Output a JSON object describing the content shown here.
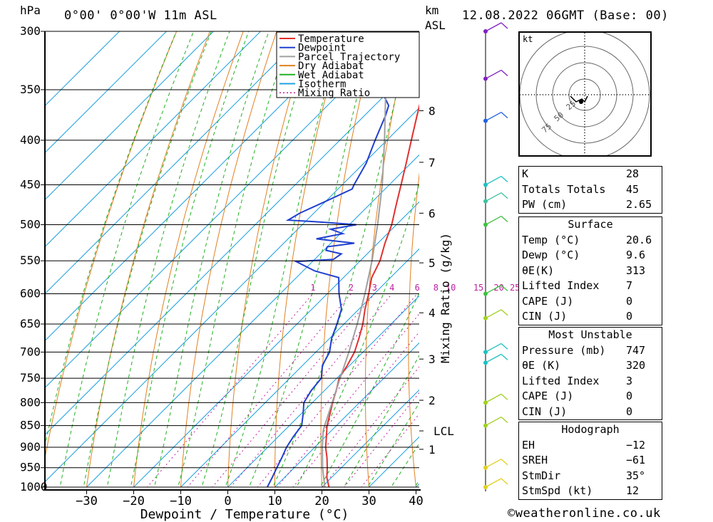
{
  "header": {
    "location": "0°00' 0°00'W 11m ASL",
    "datetime": "12.08.2022 06GMT (Base: 00)",
    "pressure_unit": "hPa",
    "height_unit_line1": "km",
    "height_unit_line2": "ASL"
  },
  "footer": {
    "copyright": "©weatheronline.co.uk"
  },
  "legend": [
    {
      "label": "Temperature",
      "color": "#e03030"
    },
    {
      "label": "Dewpoint",
      "color": "#2040d0"
    },
    {
      "label": "Parcel Trajectory",
      "color": "#a0a0a0"
    },
    {
      "label": "Dry Adiabat",
      "color": "#e08020"
    },
    {
      "label": "Wet Adiabat",
      "color": "#20b020"
    },
    {
      "label": "Isotherm",
      "color": "#20a0e0"
    },
    {
      "label": "Mixing Ratio",
      "color": "#c020a0"
    }
  ],
  "chart_data": {
    "type": "line",
    "xlabel": "Dewpoint / Temperature (°C)",
    "ylabel": "",
    "mixing_ratio_axis_label": "Mixing Ratio (g/kg)",
    "pressure_ticks": [
      300,
      350,
      400,
      450,
      500,
      550,
      600,
      650,
      700,
      750,
      800,
      850,
      900,
      950,
      1000
    ],
    "temperature_ticks": [
      "−30",
      "−20",
      "−10",
      "0",
      "10",
      "20",
      "30",
      "40"
    ],
    "temperature_tick_values": [
      -30,
      -20,
      -10,
      0,
      10,
      20,
      30,
      40
    ],
    "xlim": [
      -40,
      40
    ],
    "height_ticks": [
      {
        "label": "1",
        "p": 905
      },
      {
        "label": "LCL",
        "p": 862
      },
      {
        "label": "2",
        "p": 795
      },
      {
        "label": "3",
        "p": 713
      },
      {
        "label": "4",
        "p": 631
      },
      {
        "label": "5",
        "p": 553
      },
      {
        "label": "6",
        "p": 485
      },
      {
        "label": "7",
        "p": 424
      },
      {
        "label": "8",
        "p": 370
      }
    ],
    "mixing_ratio_labels": [
      "1",
      "2",
      "3",
      "4",
      "6",
      "8",
      "10",
      "15",
      "20",
      "25"
    ],
    "mixing_ratio_values": [
      1,
      2,
      3,
      4,
      6,
      8,
      10,
      15,
      20,
      25
    ],
    "series": [
      {
        "key": "temperature",
        "points": [
          [
            1008,
            20.6
          ],
          [
            1000,
            21.5
          ],
          [
            975,
            19
          ],
          [
            950,
            17
          ],
          [
            925,
            14.8
          ],
          [
            900,
            12.3
          ],
          [
            875,
            10.2
          ],
          [
            850,
            8
          ],
          [
            825,
            6.2
          ],
          [
            800,
            4.3
          ],
          [
            775,
            2.5
          ],
          [
            750,
            0.5
          ],
          [
            725,
            -0.5
          ],
          [
            700,
            -1.8
          ],
          [
            675,
            -3.8
          ],
          [
            650,
            -6
          ],
          [
            625,
            -8.7
          ],
          [
            600,
            -11.2
          ],
          [
            575,
            -14
          ],
          [
            550,
            -15.8
          ],
          [
            525,
            -18.5
          ],
          [
            500,
            -21
          ],
          [
            475,
            -24.2
          ],
          [
            450,
            -27.5
          ],
          [
            425,
            -31
          ],
          [
            400,
            -34.8
          ],
          [
            375,
            -38.8
          ],
          [
            350,
            -43
          ],
          [
            325,
            -47.5
          ],
          [
            300,
            -52.5
          ]
        ]
      },
      {
        "key": "dewpoint",
        "points": [
          [
            1008,
            9.6
          ],
          [
            1000,
            8.4
          ],
          [
            975,
            7.4
          ],
          [
            950,
            6.3
          ],
          [
            925,
            5.2
          ],
          [
            900,
            4
          ],
          [
            875,
            3.2
          ],
          [
            850,
            2.6
          ],
          [
            825,
            0.5
          ],
          [
            800,
            -1.8
          ],
          [
            775,
            -2.8
          ],
          [
            750,
            -3.3
          ],
          [
            725,
            -5.8
          ],
          [
            700,
            -7.1
          ],
          [
            675,
            -9.6
          ],
          [
            650,
            -11.5
          ],
          [
            625,
            -13.7
          ],
          [
            600,
            -17.5
          ],
          [
            575,
            -21
          ],
          [
            565,
            -27.5
          ],
          [
            551,
            -33.5
          ],
          [
            548,
            -26
          ],
          [
            540,
            -25.5
          ],
          [
            535,
            -29.5
          ],
          [
            530,
            -30
          ],
          [
            525,
            -25
          ],
          [
            519,
            -34
          ],
          [
            512,
            -29.5
          ],
          [
            506,
            -33
          ],
          [
            500,
            -28.5
          ],
          [
            496,
            -38
          ],
          [
            494,
            -44
          ],
          [
            485,
            -43
          ],
          [
            470,
            -40
          ],
          [
            455,
            -37
          ],
          [
            450,
            -37.5
          ],
          [
            425,
            -39.5
          ],
          [
            400,
            -42.5
          ],
          [
            375,
            -45.5
          ],
          [
            365,
            -47
          ],
          [
            350,
            -52
          ],
          [
            325,
            -59
          ],
          [
            300,
            -63
          ]
        ]
      },
      {
        "key": "parcel",
        "points": [
          [
            1000,
            20.6
          ],
          [
            950,
            16
          ],
          [
            900,
            11.6
          ],
          [
            862,
            8.3
          ],
          [
            850,
            7.5
          ],
          [
            800,
            4.2
          ],
          [
            750,
            0.7
          ],
          [
            700,
            -3
          ],
          [
            650,
            -7.2
          ],
          [
            600,
            -12
          ],
          [
            550,
            -17.5
          ],
          [
            500,
            -24
          ],
          [
            450,
            -31.5
          ],
          [
            400,
            -40.5
          ],
          [
            350,
            -51
          ],
          [
            300,
            -61
          ]
        ]
      }
    ]
  },
  "wind_barbs": [
    {
      "p": 1000,
      "color": "#e0d020"
    },
    {
      "p": 950,
      "color": "#e0d020"
    },
    {
      "p": 850,
      "color": "#a0d020"
    },
    {
      "p": 800,
      "color": "#a0d020"
    },
    {
      "p": 720,
      "color": "#20c0c0"
    },
    {
      "p": 700,
      "color": "#20c0c0"
    },
    {
      "p": 640,
      "color": "#a0d020"
    },
    {
      "p": 600,
      "color": "#40c040"
    },
    {
      "p": 500,
      "color": "#40c040"
    },
    {
      "p": 470,
      "color": "#40c0a0"
    },
    {
      "p": 450,
      "color": "#20c0c0"
    },
    {
      "p": 380,
      "color": "#2060e0"
    },
    {
      "p": 340,
      "color": "#8020c0"
    },
    {
      "p": 300,
      "color": "#8020c0"
    }
  ],
  "hodograph": {
    "unit_label": "kt",
    "ring_labels": [
      "25",
      "50",
      "75"
    ]
  },
  "indices": [
    {
      "label": "K",
      "value": "28"
    },
    {
      "label": "Totals Totals",
      "value": "45"
    },
    {
      "label": "PW (cm)",
      "value": "2.65"
    }
  ],
  "surface": {
    "title": "Surface",
    "rows": [
      {
        "label": "Temp (°C)",
        "value": "20.6"
      },
      {
        "label": "Dewp (°C)",
        "value": "9.6"
      },
      {
        "label": "θE(K)",
        "value": "313"
      },
      {
        "label": "Lifted Index",
        "value": "7"
      },
      {
        "label": "CAPE (J)",
        "value": "0"
      },
      {
        "label": "CIN (J)",
        "value": "0"
      }
    ]
  },
  "most_unstable": {
    "title": "Most Unstable",
    "rows": [
      {
        "label": "Pressure (mb)",
        "value": "747"
      },
      {
        "label": "θE (K)",
        "value": "320"
      },
      {
        "label": "Lifted Index",
        "value": "3"
      },
      {
        "label": "CAPE (J)",
        "value": "0"
      },
      {
        "label": "CIN (J)",
        "value": "0"
      }
    ]
  },
  "hodograph_params": {
    "title": "Hodograph",
    "rows": [
      {
        "label": "EH",
        "value": "−12"
      },
      {
        "label": "SREH",
        "value": "−61"
      },
      {
        "label": "StmDir",
        "value": "35°"
      },
      {
        "label": "StmSpd (kt)",
        "value": "12"
      }
    ]
  }
}
